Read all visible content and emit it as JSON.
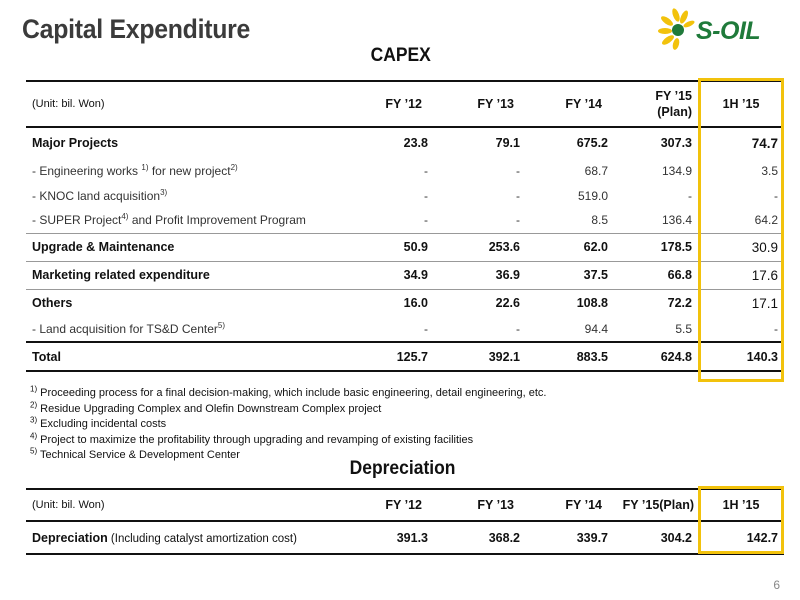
{
  "page": {
    "title": "Capital Expenditure",
    "page_number": "6",
    "logo_text": "S-OIL",
    "accent_color": "#f2c20c",
    "logo_green": "#1f7a3a"
  },
  "capex": {
    "title": "CAPEX",
    "unit": "(Unit: bil. Won)",
    "headers": [
      "FY ’12",
      "FY ’13",
      "FY ’14",
      "FY ’15",
      "(Plan)",
      "1H ’15"
    ],
    "rows": {
      "major": {
        "label": "Major Projects",
        "values": [
          "23.8",
          "79.1",
          "675.2",
          "307.3",
          "74.7"
        ]
      },
      "eng": {
        "label_a": " - Engineering works ",
        "sup1": "1)",
        "label_b": " for new project",
        "sup2": "2)",
        "values": [
          "-",
          "-",
          "68.7",
          "134.9",
          "3.5"
        ]
      },
      "knoc": {
        "label_a": " - KNOC land acquisition",
        "sup1": "3)",
        "values": [
          "-",
          "-",
          "519.0",
          "-",
          "-"
        ]
      },
      "super": {
        "label_a": " - SUPER Project",
        "sup1": "4)",
        "label_b": " and Profit Improvement Program",
        "values": [
          "-",
          "-",
          "8.5",
          "136.4",
          "64.2"
        ]
      },
      "upgrade": {
        "label": "Upgrade & Maintenance",
        "values": [
          "50.9",
          "253.6",
          "62.0",
          "178.5",
          "30.9"
        ]
      },
      "marketing": {
        "label": "Marketing related expenditure",
        "values": [
          "34.9",
          "36.9",
          "37.5",
          "66.8",
          "17.6"
        ]
      },
      "others": {
        "label": "Others",
        "values": [
          "16.0",
          "22.6",
          "108.8",
          "72.2",
          "17.1"
        ]
      },
      "land": {
        "label_a": " - Land acquisition for TS&D Center",
        "sup1": "5)",
        "values": [
          "-",
          "-",
          "94.4",
          "5.5",
          "-"
        ]
      },
      "total": {
        "label": "Total",
        "values": [
          "125.7",
          "392.1",
          "883.5",
          "624.8",
          "140.3"
        ]
      }
    }
  },
  "footnotes": [
    {
      "mark": "1)",
      "text": " Proceeding process for a final decision-making, which include basic engineering, detail engineering, etc."
    },
    {
      "mark": "2)",
      "text": " Residue Upgrading Complex and Olefin Downstream Complex project"
    },
    {
      "mark": "3)",
      "text": " Excluding incidental costs"
    },
    {
      "mark": "4)",
      "text": " Project to maximize the profitability through upgrading and revamping of existing facilities"
    },
    {
      "mark": "5)",
      "text": " Technical Service & Development Center"
    }
  ],
  "depreciation": {
    "title": "Depreciation",
    "unit": "(Unit: bil. Won)",
    "headers": [
      "FY ’12",
      "FY ’13",
      "FY ’14",
      "FY ’15(Plan)",
      "1H ’15"
    ],
    "row": {
      "label": "Depreciation",
      "label_note": " (Including catalyst amortization cost)",
      "values": [
        "391.3",
        "368.2",
        "339.7",
        "304.2",
        "142.7"
      ]
    }
  }
}
